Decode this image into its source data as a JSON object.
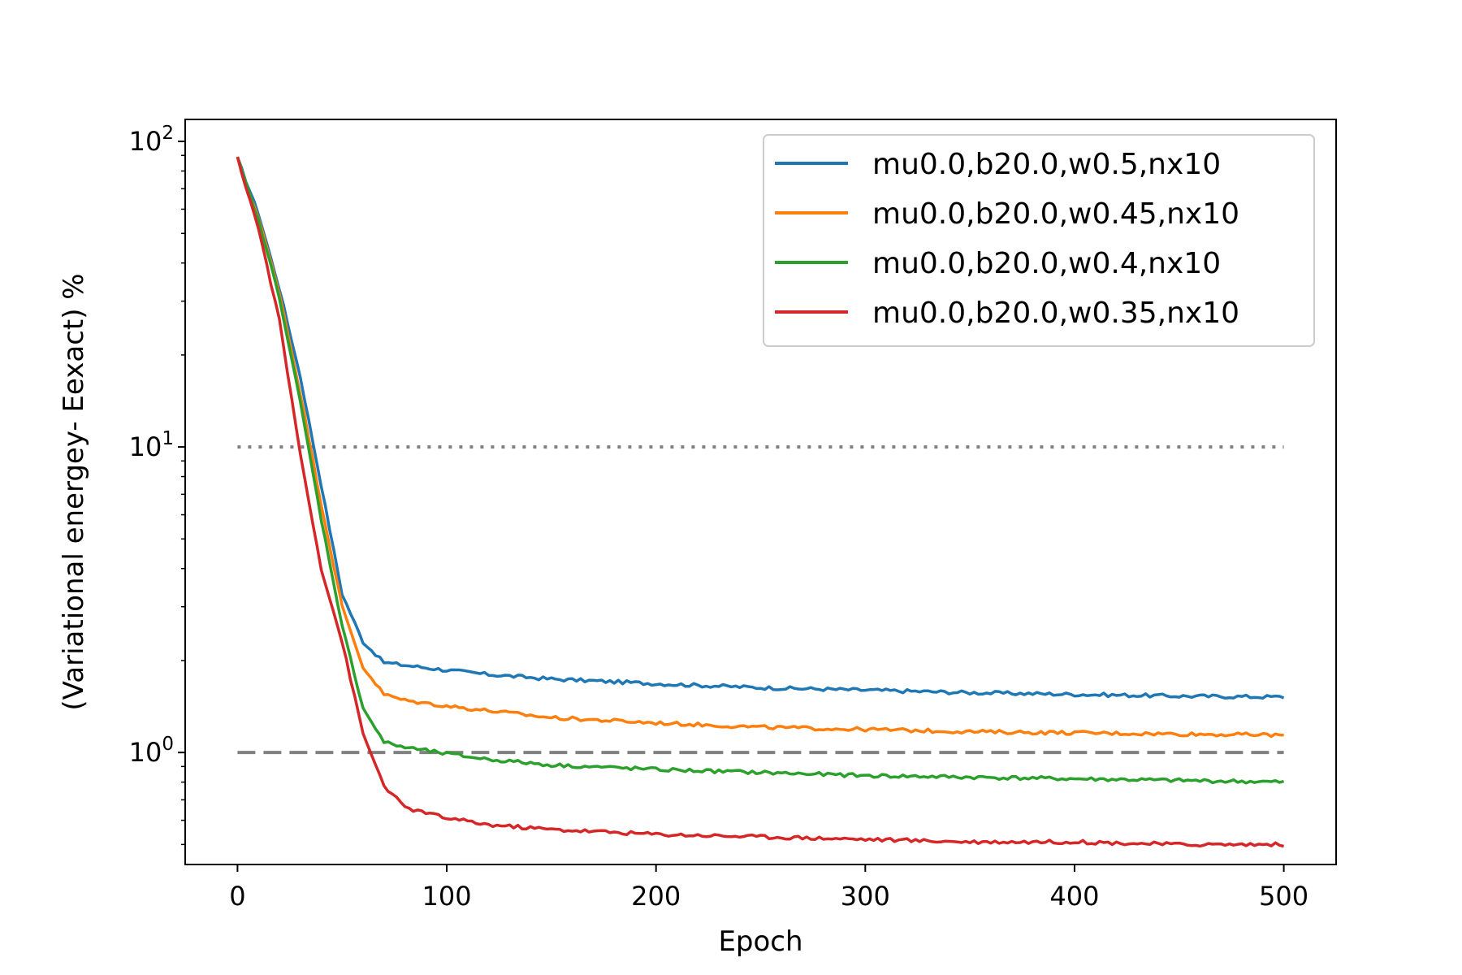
{
  "chart_data": {
    "type": "line",
    "title": "",
    "xlabel": "Epoch",
    "ylabel": "(Variational energey- Eexact) %",
    "xlim": [
      -25,
      525
    ],
    "ylim": [
      0.43,
      118
    ],
    "yscale": "log",
    "x_ticks": [
      0,
      100,
      200,
      300,
      400,
      500
    ],
    "x_tick_labels": [
      "0",
      "100",
      "200",
      "300",
      "400",
      "500"
    ],
    "y_ticks": [
      1,
      10,
      100
    ],
    "y_tick_labels": [
      {
        "base": "10",
        "exp": "0"
      },
      {
        "base": "10",
        "exp": "1"
      },
      {
        "base": "10",
        "exp": "2"
      }
    ],
    "grid": false,
    "legend_position": "top-right",
    "reference_lines": [
      {
        "y": 10,
        "style": "dotted",
        "color": "#808080",
        "x_range": [
          0,
          500
        ]
      },
      {
        "y": 1,
        "style": "dashed",
        "color": "#808080",
        "x_range": [
          0,
          500
        ]
      }
    ],
    "series": [
      {
        "name": "mu0.0,b20.0,w0.5,nx10",
        "color": "#1f77b4",
        "x": [
          0,
          10,
          20,
          30,
          40,
          50,
          60,
          70,
          80,
          100,
          120,
          150,
          200,
          250,
          300,
          350,
          400,
          450,
          500
        ],
        "y": [
          88,
          58,
          33,
          17,
          7.5,
          3.3,
          2.3,
          1.97,
          1.93,
          1.86,
          1.8,
          1.74,
          1.68,
          1.63,
          1.6,
          1.57,
          1.55,
          1.53,
          1.52
        ]
      },
      {
        "name": "mu0.0,b20.0,w0.45,nx10",
        "color": "#ff7f0e",
        "x": [
          0,
          10,
          20,
          30,
          40,
          50,
          60,
          70,
          80,
          100,
          120,
          150,
          200,
          250,
          300,
          350,
          400,
          450,
          500
        ],
        "y": [
          88,
          56,
          32,
          15,
          6.5,
          3.0,
          1.9,
          1.55,
          1.48,
          1.42,
          1.37,
          1.3,
          1.25,
          1.21,
          1.19,
          1.17,
          1.16,
          1.15,
          1.14
        ]
      },
      {
        "name": "mu0.0,b20.0,w0.4,nx10",
        "color": "#2ca02c",
        "x": [
          0,
          10,
          20,
          30,
          40,
          50,
          60,
          70,
          80,
          100,
          120,
          150,
          200,
          250,
          300,
          350,
          400,
          450,
          500
        ],
        "y": [
          88,
          55,
          31,
          14,
          5.8,
          2.6,
          1.4,
          1.08,
          1.04,
          0.99,
          0.95,
          0.91,
          0.88,
          0.86,
          0.84,
          0.83,
          0.82,
          0.81,
          0.8
        ]
      },
      {
        "name": "mu0.0,b20.0,w0.35,nx10",
        "color": "#d62728",
        "x": [
          0,
          10,
          20,
          30,
          40,
          50,
          60,
          70,
          80,
          100,
          120,
          150,
          200,
          250,
          300,
          350,
          400,
          450,
          500
        ],
        "y": [
          88,
          52,
          26,
          9.5,
          4.0,
          2.3,
          1.15,
          0.78,
          0.66,
          0.61,
          0.58,
          0.56,
          0.54,
          0.53,
          0.52,
          0.51,
          0.51,
          0.5,
          0.5
        ]
      }
    ]
  }
}
